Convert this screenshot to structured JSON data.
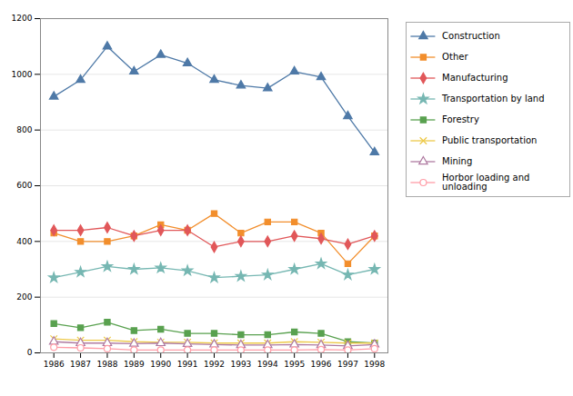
{
  "chart_data": {
    "type": "line",
    "x": [
      1986,
      1987,
      1988,
      1989,
      1990,
      1991,
      1992,
      1993,
      1994,
      1995,
      1996,
      1997,
      1998
    ],
    "xlim": [
      1985.5,
      1998.5
    ],
    "xticks": [
      1986,
      1987,
      1988,
      1989,
      1990,
      1991,
      1992,
      1993,
      1994,
      1995,
      1996,
      1997,
      1998
    ],
    "ylim": [
      0,
      1200
    ],
    "yticks": [
      0,
      200,
      400,
      600,
      800,
      1000,
      1200
    ],
    "grid": "y",
    "legend": "right",
    "series": [
      {
        "name": "Construction",
        "marker": "triangle",
        "values": [
          920,
          980,
          1100,
          1010,
          1070,
          1040,
          980,
          960,
          950,
          1010,
          990,
          850,
          720
        ]
      },
      {
        "name": "Other",
        "marker": "square",
        "values": [
          430,
          400,
          400,
          420,
          460,
          440,
          500,
          430,
          470,
          470,
          430,
          320,
          420
        ]
      },
      {
        "name": "Manufacturing",
        "marker": "diamond",
        "values": [
          440,
          440,
          450,
          420,
          440,
          440,
          380,
          400,
          400,
          420,
          410,
          390,
          420
        ]
      },
      {
        "name": "Transportation by land",
        "marker": "star",
        "values": [
          270,
          290,
          310,
          300,
          305,
          295,
          270,
          275,
          280,
          300,
          320,
          280,
          300
        ]
      },
      {
        "name": "Forestry",
        "marker": "square",
        "values": [
          105,
          90,
          110,
          80,
          85,
          70,
          70,
          65,
          65,
          75,
          70,
          40,
          35
        ]
      },
      {
        "name": "Public transportation",
        "marker": "times",
        "values": [
          50,
          45,
          45,
          40,
          38,
          38,
          35,
          35,
          35,
          40,
          38,
          35,
          35
        ]
      },
      {
        "name": "Mining",
        "marker": "triangle-open",
        "values": [
          40,
          35,
          35,
          33,
          35,
          32,
          30,
          28,
          28,
          30,
          28,
          25,
          30
        ]
      },
      {
        "name": "Horbor loading and\nunloading",
        "marker": "circle-open",
        "values": [
          20,
          18,
          15,
          10,
          10,
          10,
          10,
          10,
          10,
          10,
          12,
          10,
          15
        ]
      }
    ]
  }
}
